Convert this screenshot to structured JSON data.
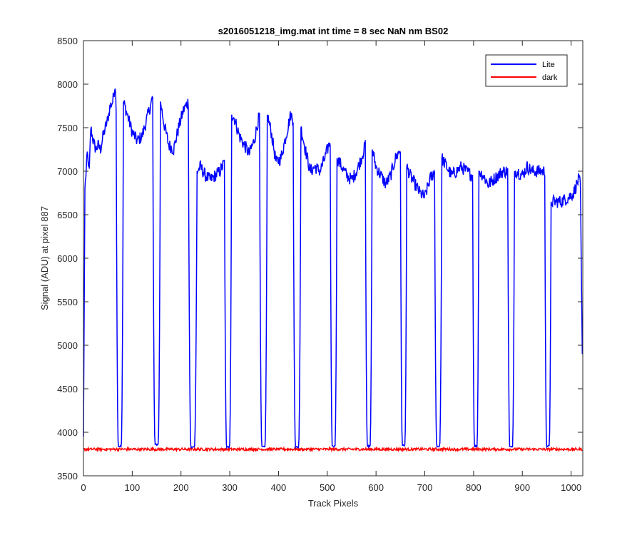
{
  "chart_data": {
    "type": "line",
    "title": "s2016051218_img.mat int time = 8 sec  NaN nm BS02",
    "xlabel": "Track Pixels",
    "ylabel": "Signal (ADU) at pixel 887",
    "xlim": [
      0,
      1024
    ],
    "ylim": [
      3500,
      8500
    ],
    "xticks": [
      0,
      100,
      200,
      300,
      400,
      500,
      600,
      700,
      800,
      900,
      1000
    ],
    "yticks": [
      3500,
      4000,
      4500,
      5000,
      5500,
      6000,
      6500,
      7000,
      7500,
      8000,
      8500
    ],
    "grid": false,
    "legend_position": "top-right",
    "series": [
      {
        "name": "Lite",
        "color": "#0000ff",
        "baseline": 3840,
        "edges": [
          [
            0,
            3950
          ],
          [
            3,
            6800
          ],
          [
            8,
            7200
          ],
          [
            12,
            7000
          ],
          [
            15,
            7500
          ],
          [
            20,
            7350
          ],
          [
            25,
            7250
          ],
          [
            30,
            7300
          ],
          [
            35,
            7250
          ],
          [
            40,
            7400
          ],
          [
            45,
            7500
          ],
          [
            50,
            7600
          ],
          [
            55,
            7750
          ],
          [
            60,
            7800
          ],
          [
            65,
            8000
          ],
          [
            67,
            7750
          ]
        ],
        "dips": [
          {
            "start": 67,
            "end": 82,
            "bottom": 3840
          },
          {
            "start": 142,
            "end": 158,
            "bottom": 3860
          },
          {
            "start": 215,
            "end": 233,
            "bottom": 3830
          },
          {
            "start": 289,
            "end": 304,
            "bottom": 3830
          },
          {
            "start": 361,
            "end": 377,
            "bottom": 3830
          },
          {
            "start": 430,
            "end": 446,
            "bottom": 3830
          },
          {
            "start": 506,
            "end": 520,
            "bottom": 3840
          },
          {
            "start": 578,
            "end": 592,
            "bottom": 3840
          },
          {
            "start": 650,
            "end": 663,
            "bottom": 3850
          },
          {
            "start": 720,
            "end": 735,
            "bottom": 3840
          },
          {
            "start": 798,
            "end": 811,
            "bottom": 3840
          },
          {
            "start": 870,
            "end": 884,
            "bottom": 3830
          },
          {
            "start": 946,
            "end": 959,
            "bottom": 3840
          }
        ],
        "segments": [
          {
            "x": [
              82,
              90,
              100,
              110,
              120,
              130,
              142
            ],
            "y": [
              7800,
              7650,
              7450,
              7350,
              7400,
              7600,
              7850
            ]
          },
          {
            "x": [
              158,
              165,
              175,
              185,
              195,
              205,
              215
            ],
            "y": [
              7800,
              7550,
              7300,
              7250,
              7500,
              7700,
              7800
            ]
          },
          {
            "x": [
              233,
              240,
              250,
              260,
              270,
              280,
              289
            ],
            "y": [
              7000,
              7050,
              6950,
              6900,
              6950,
              7000,
              7100
            ]
          },
          {
            "x": [
              304,
              310,
              320,
              330,
              340,
              350,
              361
            ],
            "y": [
              7650,
              7600,
              7400,
              7300,
              7200,
              7350,
              7650
            ]
          },
          {
            "x": [
              377,
              385,
              395,
              405,
              415,
              425,
              430
            ],
            "y": [
              7650,
              7450,
              7100,
              7150,
              7400,
              7650,
              7600
            ]
          },
          {
            "x": [
              446,
              455,
              465,
              475,
              485,
              495,
              506
            ],
            "y": [
              7500,
              7250,
              7000,
              7050,
              7000,
              7150,
              7350
            ]
          },
          {
            "x": [
              520,
              530,
              540,
              550,
              560,
              570,
              578
            ],
            "y": [
              7150,
              7050,
              6950,
              6900,
              7000,
              7150,
              7300
            ]
          },
          {
            "x": [
              592,
              600,
              610,
              620,
              630,
              640,
              650
            ],
            "y": [
              7250,
              7050,
              6950,
              6850,
              6950,
              7150,
              7250
            ]
          },
          {
            "x": [
              663,
              670,
              680,
              690,
              700,
              710,
              720
            ],
            "y": [
              7050,
              6950,
              6850,
              6750,
              6700,
              6900,
              7000
            ]
          },
          {
            "x": [
              735,
              745,
              755,
              765,
              775,
              785,
              798
            ],
            "y": [
              7150,
              7050,
              6950,
              7000,
              7050,
              7000,
              6950
            ]
          },
          {
            "x": [
              811,
              820,
              830,
              840,
              850,
              860,
              870
            ],
            "y": [
              7000,
              6950,
              6850,
              6900,
              6950,
              7000,
              7000
            ]
          },
          {
            "x": [
              884,
              890,
              900,
              910,
              920,
              930,
              946
            ],
            "y": [
              7000,
              7000,
              6950,
              7050,
              7000,
              7000,
              7000
            ]
          },
          {
            "x": [
              959,
              965,
              980,
              995,
              1005,
              1015,
              1019,
              1023
            ],
            "y": [
              6650,
              6650,
              6650,
              6700,
              6750,
              6900,
              6850,
              4900
            ]
          }
        ]
      },
      {
        "name": "dark",
        "color": "#ff0000",
        "mean": 3805,
        "x_range": [
          0,
          1023
        ]
      }
    ]
  }
}
